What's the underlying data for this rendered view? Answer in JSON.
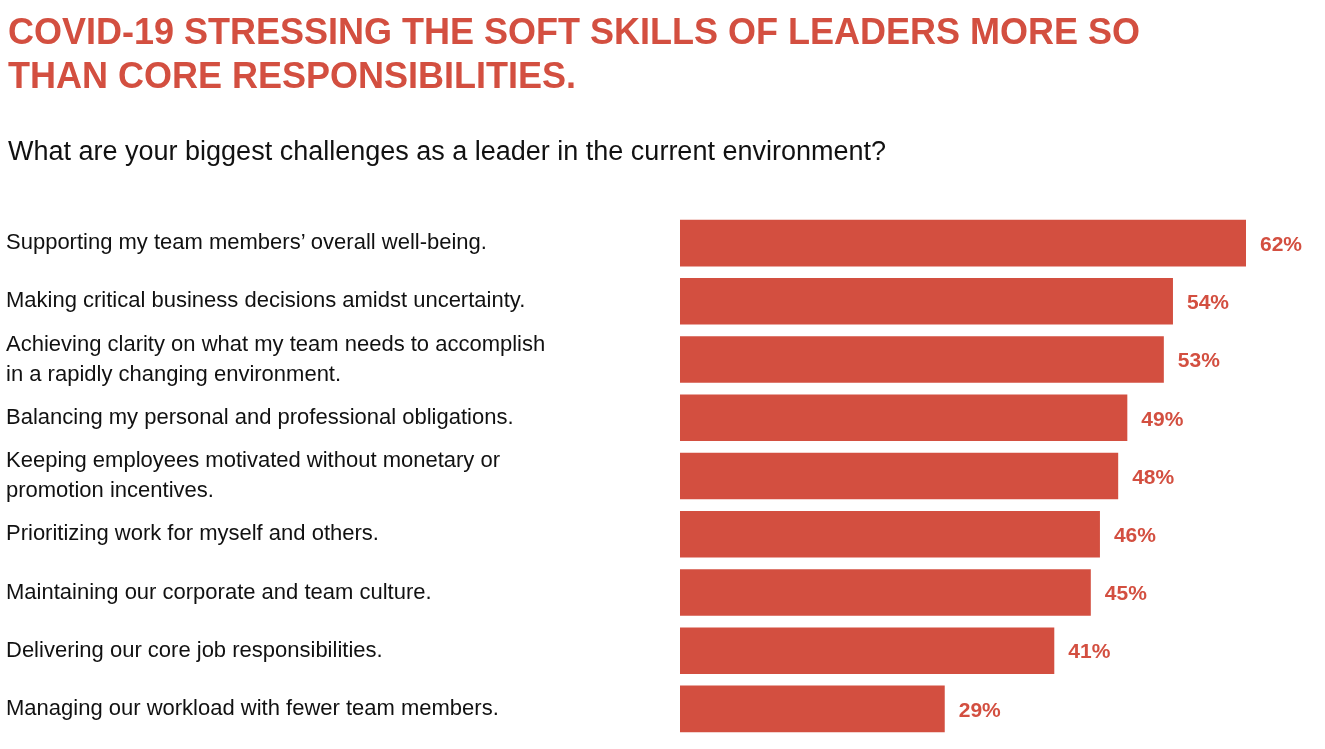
{
  "chart_data": {
    "type": "bar",
    "orientation": "horizontal",
    "title": "COVID-19 STRESSING THE SOFT SKILLS OF LEADERS MORE SO THAN CORE RESPONSIBILITIES.",
    "subtitle": "What are your biggest challenges as a leader in the current environment?",
    "categories": [
      "Supporting my team members’ overall well-being.",
      "Making critical business decisions amidst uncertainty.",
      "Achieving clarity on what my team needs to accomplish in a rapidly changing environment.",
      "Balancing my personal and professional obligations.",
      "Keeping employees motivated without monetary or promotion incentives.",
      "Prioritizing work for myself and others.",
      "Maintaining our corporate and team culture.",
      "Delivering our core job responsibilities.",
      "Managing our workload with fewer team members."
    ],
    "values": [
      62,
      54,
      53,
      49,
      48,
      46,
      45,
      41,
      29
    ],
    "value_labels": [
      "62%",
      "54%",
      "53%",
      "49%",
      "48%",
      "46%",
      "45%",
      "41%",
      "29%"
    ],
    "color": "#d34f40",
    "xlim": [
      0,
      62
    ],
    "legend": false
  }
}
